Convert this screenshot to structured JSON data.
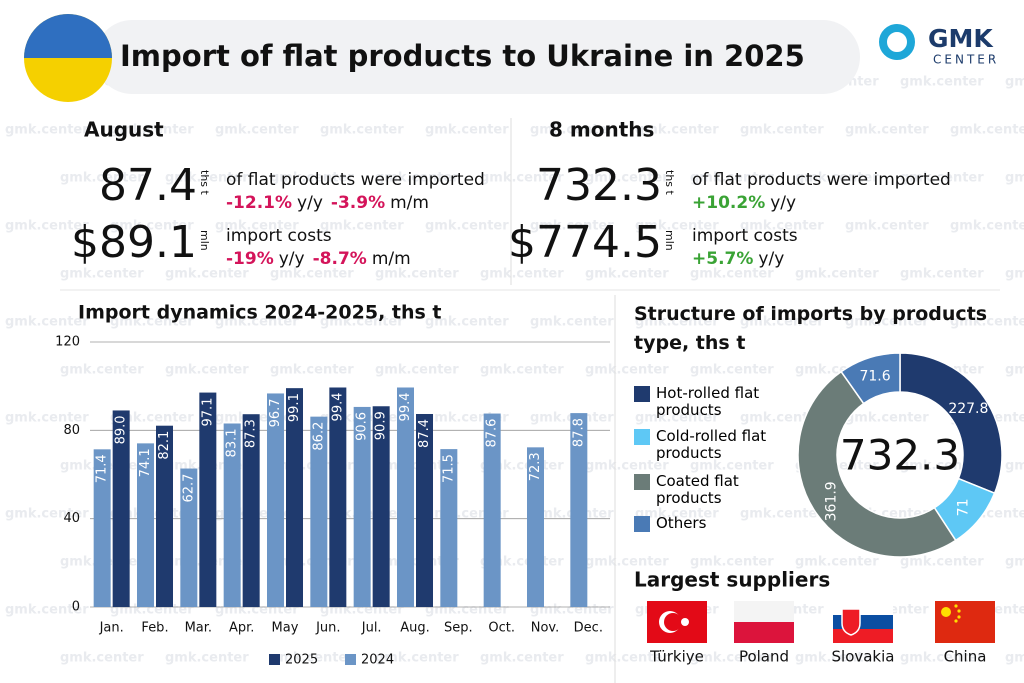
{
  "watermark": "gmk.center",
  "header": {
    "title": "Import of flat products to Ukraine in 2025",
    "logo_main": "GMK",
    "logo_sub": "CENTER"
  },
  "labels": {
    "yy": "y/y",
    "mm": "m/m"
  },
  "august": {
    "heading": "August",
    "volume": "87.4",
    "volume_unit": "ths t",
    "volume_text": "of flat products were imported",
    "volume_yy": "-12.1%",
    "volume_mm": "-3.9%",
    "cost": "$89.1",
    "cost_unit": "mln",
    "cost_text": "import costs",
    "cost_yy": "-19%",
    "cost_mm": "-8.7%"
  },
  "eight_months": {
    "heading": "8 months",
    "volume": "732.3",
    "volume_unit": "ths t",
    "volume_text": "of flat products were imported",
    "volume_yy": "+10.2%",
    "cost": "$774.5",
    "cost_unit": "mln",
    "cost_text": "import costs",
    "cost_yy": "+5.7%"
  },
  "chart_data": [
    {
      "type": "bar",
      "title": "Import dynamics 2024-2025, ths t",
      "categories": [
        "Jan.",
        "Feb.",
        "Mar.",
        "Apr.",
        "May",
        "Jun.",
        "Jul.",
        "Aug.",
        "Sep.",
        "Oct.",
        "Nov.",
        "Dec."
      ],
      "series": [
        {
          "name": "2025",
          "color": "#1f3a6e",
          "values": [
            89.0,
            82.1,
            97.1,
            87.3,
            99.1,
            99.4,
            90.9,
            87.4,
            null,
            null,
            null,
            null
          ],
          "value_labels": [
            "89.0",
            "82.1",
            "97.1",
            "87.3",
            "99.1",
            "99.4",
            "90.9",
            "87.4",
            null,
            null,
            null,
            null
          ]
        },
        {
          "name": "2024",
          "color": "#6b95c6",
          "values": [
            71.4,
            74.1,
            62.7,
            83.1,
            96.7,
            86.2,
            90.6,
            99.4,
            71.5,
            87.6,
            72.3,
            87.8
          ]
        }
      ],
      "ylim": [
        0,
        120
      ],
      "yticks": [
        0,
        40,
        80,
        120
      ],
      "grid": true
    },
    {
      "type": "donut",
      "title": "Structure of imports by products type, ths t",
      "categories": [
        "Hot-rolled flat products",
        "Cold-rolled flat products",
        "Coated flat products",
        "Others"
      ],
      "values": [
        227.8,
        71,
        361.9,
        71.6
      ],
      "colors": [
        "#1f3a6e",
        "#5ec8f5",
        "#6b7c78",
        "#4a7ab5"
      ],
      "total": 732.3
    }
  ],
  "suppliers": {
    "heading": "Largest suppliers",
    "countries": [
      "Türkiye",
      "Poland",
      "Slovakia",
      "China"
    ]
  }
}
